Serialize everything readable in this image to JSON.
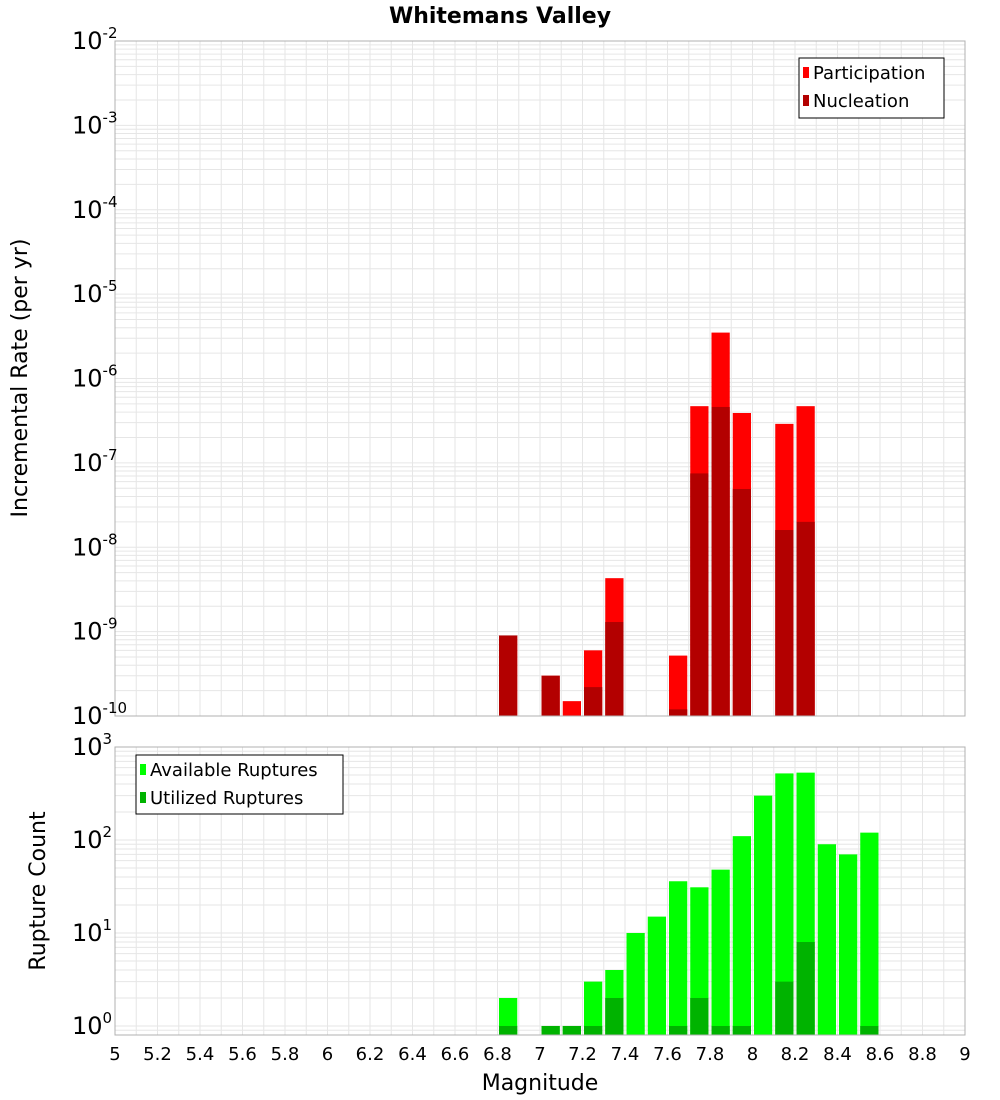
{
  "title": "Whitemans Valley",
  "xlabel": "Magnitude",
  "colors": {
    "participation": "#ff0000",
    "nucleation": "#b30000",
    "available": "#00ff00",
    "utilized": "#00b300",
    "grid": "#e6e6e6",
    "frame": "#b0b0b0"
  },
  "chart_data": [
    {
      "type": "bar",
      "panel": "top",
      "ylabel": "Incremental Rate (per yr)",
      "yscale": "log",
      "xlim": [
        5,
        9
      ],
      "ylim": [
        1e-10,
        0.01
      ],
      "ytick_exponents": [
        -2,
        -3,
        -4,
        -5,
        -6,
        -7,
        -8,
        -9,
        -10
      ],
      "grid": true,
      "legend_position": "top-right",
      "x": [
        6.85,
        7.05,
        7.15,
        7.25,
        7.35,
        7.65,
        7.75,
        7.85,
        7.95,
        8.15,
        8.25
      ],
      "series": [
        {
          "name": "Participation",
          "values": [
            9e-10,
            3e-10,
            1.5e-10,
            6e-10,
            4.3e-09,
            5.2e-10,
            4.7e-07,
            3.5e-06,
            3.9e-07,
            2.9e-07,
            4.7e-07
          ]
        },
        {
          "name": "Nucleation",
          "values": [
            9e-10,
            3e-10,
            1e-10,
            2.2e-10,
            1.3e-09,
            1.2e-10,
            7.5e-08,
            4.6e-07,
            4.9e-08,
            1.6e-08,
            2e-08
          ]
        }
      ]
    },
    {
      "type": "bar",
      "panel": "bottom",
      "ylabel": "Rupture Count",
      "yscale": "log",
      "xlim": [
        5,
        9
      ],
      "ylim": [
        0.8,
        1000
      ],
      "ytick_exponents": [
        3,
        2,
        1,
        0
      ],
      "grid": true,
      "legend_position": "top-left",
      "xticks": [
        "5",
        "5.2",
        "5.4",
        "5.6",
        "5.8",
        "6",
        "6.2",
        "6.4",
        "6.6",
        "6.8",
        "7",
        "7.2",
        "7.4",
        "7.6",
        "7.8",
        "8",
        "8.2",
        "8.4",
        "8.6",
        "8.8",
        "9"
      ],
      "x": [
        6.85,
        7.05,
        7.15,
        7.25,
        7.35,
        7.45,
        7.55,
        7.65,
        7.75,
        7.85,
        7.95,
        8.05,
        8.15,
        8.25,
        8.35,
        8.45,
        8.55
      ],
      "series": [
        {
          "name": "Available Ruptures",
          "values": [
            2,
            1,
            1,
            3,
            4,
            10,
            15,
            36,
            31,
            48,
            110,
            300,
            520,
            530,
            90,
            70,
            120
          ]
        },
        {
          "name": "Utilized Ruptures",
          "values": [
            1,
            1,
            1,
            1,
            2,
            0,
            0,
            1,
            2,
            1,
            1,
            0,
            3,
            8,
            0,
            0,
            1
          ]
        }
      ]
    }
  ]
}
